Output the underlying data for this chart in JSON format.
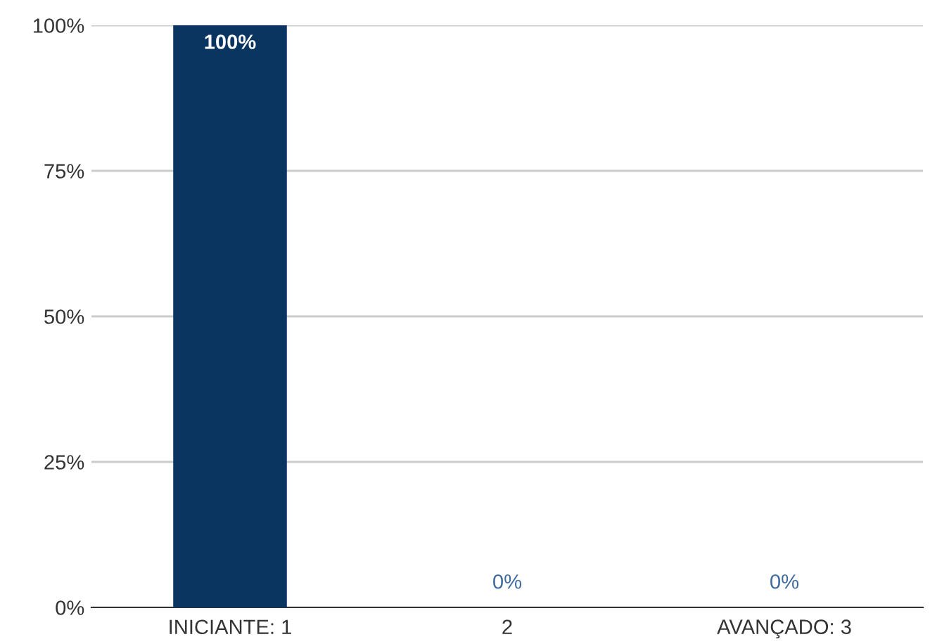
{
  "chart_data": {
    "type": "bar",
    "categories": [
      "INICIANTE: 1",
      "2",
      "AVANÇADO: 3"
    ],
    "values": [
      100,
      0,
      0
    ],
    "color": "#0b3561",
    "value_labels": [
      "100%",
      "0%",
      "0%"
    ],
    "ylim": [
      0,
      100
    ],
    "yticks": [
      {
        "value": 0,
        "label": "0%"
      },
      {
        "value": 25,
        "label": "25%"
      },
      {
        "value": 50,
        "label": "50%"
      },
      {
        "value": 75,
        "label": "75%"
      },
      {
        "value": 100,
        "label": "100%"
      }
    ],
    "grid": "y"
  }
}
